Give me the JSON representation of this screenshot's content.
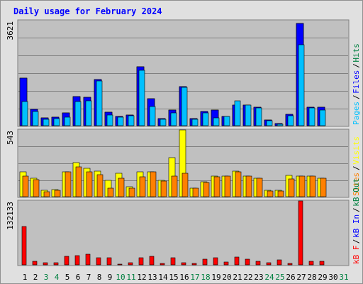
{
  "chart_data": {
    "type": "bar",
    "title": "Daily usage for February 2024",
    "categories": [
      "1",
      "2",
      "3",
      "4",
      "5",
      "6",
      "7",
      "8",
      "9",
      "10",
      "11",
      "12",
      "13",
      "14",
      "15",
      "16",
      "17",
      "18",
      "19",
      "20",
      "21",
      "22",
      "23",
      "24",
      "25",
      "26",
      "27",
      "28",
      "29",
      "30",
      "31"
    ],
    "weekend_days": [
      "3",
      "4",
      "10",
      "11",
      "17",
      "18",
      "24",
      "25",
      "31"
    ],
    "colors": {
      "hits": "#008040",
      "files": "#0000ff",
      "pages": "#00c0ff",
      "visits": "#ffff00",
      "sites": "#ff8000",
      "kb_in": "#0000ff",
      "kb_out": "#008040",
      "kb_f": "#ff0000",
      "weekend": "#008040",
      "weekday": "#000000"
    },
    "panels": [
      {
        "id": "hits-files-pages",
        "max_label": "3621",
        "ylim": [
          0,
          3621
        ],
        "right_labels": [
          {
            "text": "Pages",
            "color": "#00c0ff"
          },
          {
            "text": "Files",
            "color": "#0000ff"
          },
          {
            "text": "Hits",
            "color": "#008040"
          }
        ],
        "series": [
          {
            "name": "Hits",
            "color": "#008040",
            "values": [
              1640,
              560,
              260,
              290,
              440,
              1000,
              980,
              1590,
              460,
              330,
              360,
              2020,
              930,
              250,
              540,
              1350,
              240,
              480,
              540,
              330,
              700,
              720,
              640,
              200,
              80,
              380,
              3520,
              630,
              640,
              0,
              0
            ]
          },
          {
            "name": "Files",
            "color": "#0000ff",
            "values": [
              1640,
              560,
              260,
              290,
              440,
              1000,
              980,
              1590,
              460,
              330,
              360,
              2020,
              930,
              250,
              540,
              1350,
              240,
              480,
              540,
              330,
              700,
              720,
              640,
              200,
              80,
              380,
              3520,
              630,
              640,
              0,
              0
            ]
          },
          {
            "name": "Pages",
            "color": "#00c0ff",
            "values": [
              820,
              500,
              230,
              250,
              290,
              820,
              860,
              1550,
              360,
              290,
              340,
              1900,
              660,
              230,
              430,
              1320,
              210,
              430,
              280,
              310,
              850,
              700,
              610,
              180,
              50,
              350,
              2800,
              610,
              530,
              0,
              0
            ]
          }
        ]
      },
      {
        "id": "visits-sites",
        "max_label": "543",
        "ylim": [
          0,
          543
        ],
        "right_labels": [
          {
            "text": "Sites",
            "color": "#ff8000"
          },
          {
            "text": "Visits",
            "color": "#ffff00"
          }
        ],
        "series": [
          {
            "name": "Visits",
            "color": "#ffff00",
            "values": [
              200,
              150,
              50,
              60,
              200,
              280,
              230,
              210,
              130,
              190,
              80,
              200,
              200,
              130,
              320,
              543,
              70,
              120,
              170,
              170,
              210,
              170,
              150,
              50,
              50,
              175,
              170,
              170,
              150,
              0,
              0
            ]
          },
          {
            "name": "Sites",
            "color": "#ff8000",
            "values": [
              165,
              140,
              40,
              50,
              200,
              240,
              200,
              180,
              70,
              150,
              70,
              160,
              200,
              125,
              170,
              190,
              70,
              115,
              160,
              165,
              200,
              170,
              150,
              45,
              45,
              145,
              165,
              165,
              150,
              0,
              0
            ]
          }
        ]
      },
      {
        "id": "kbytes",
        "max_label": "132133",
        "ylim": [
          0,
          132133
        ],
        "right_labels": [
          {
            "text": "kB F",
            "color": "#ff0000"
          },
          {
            "text": "kB In",
            "color": "#0000ff"
          },
          {
            "text": "kB Out",
            "color": "#008040"
          }
        ],
        "series": [
          {
            "name": "kB F",
            "color": "#ff0000",
            "values": [
              80000,
              8000,
              4000,
              5000,
              18000,
              19000,
              22000,
              14000,
              14000,
              2000,
              5000,
              14000,
              18000,
              3000,
              14000,
              4000,
              3000,
              12000,
              15000,
              6000,
              16000,
              12000,
              7000,
              4000,
              10000,
              3000,
              132133,
              8000,
              8000,
              0,
              0
            ]
          }
        ]
      }
    ]
  }
}
